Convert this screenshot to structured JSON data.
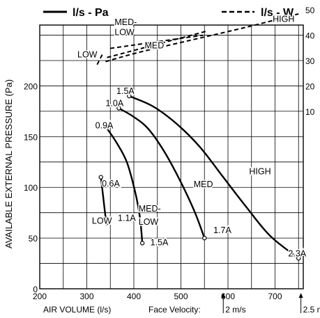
{
  "chart_data": {
    "type": "line",
    "title": "",
    "legend": {
      "solid_label": "l/s - Pa",
      "dashed_label": "l/s - W",
      "placement": "top"
    },
    "xlabel": "AIR VOLUME (l/s)",
    "ylabel": "AVAILABLE EXTERNAL PRESSURE (Pa)",
    "xlim": [
      200,
      760
    ],
    "ylim": [
      0,
      260
    ],
    "x_ticks": [
      "200",
      "300",
      "400",
      "500",
      "600",
      "700"
    ],
    "y_ticks": [
      "0",
      "50",
      "100",
      "150",
      "200"
    ],
    "y2_ticks": [
      "10",
      "20",
      "30",
      "40",
      "50"
    ],
    "grid": true,
    "face_velocity": {
      "label": "Face Velocity:",
      "markers": [
        {
          "label": "2 m/s",
          "x": 590
        },
        {
          "label": "2.5 m/s",
          "x": 755
        }
      ]
    },
    "pressure_series": [
      {
        "name": "LOW",
        "points": [
          [
            330,
            110
          ],
          [
            335,
            90
          ],
          [
            340,
            70
          ],
          [
            342,
            65
          ]
        ],
        "start_label": "0.6A",
        "end_label": "1.1A"
      },
      {
        "name": "MED-LOW",
        "points": [
          [
            340,
            160
          ],
          [
            362,
            145
          ],
          [
            385,
            125
          ],
          [
            403,
            95
          ],
          [
            413,
            70
          ],
          [
            418,
            45
          ]
        ],
        "start_label": "0.9A",
        "end_label": "1.5A"
      },
      {
        "name": "MED",
        "points": [
          [
            368,
            178
          ],
          [
            398,
            170
          ],
          [
            430,
            158
          ],
          [
            465,
            135
          ],
          [
            500,
            105
          ],
          [
            530,
            75
          ],
          [
            550,
            50
          ]
        ],
        "start_label": "1.0A",
        "end_label": "1.7A"
      },
      {
        "name": "HIGH",
        "points": [
          [
            390,
            190
          ],
          [
            440,
            180
          ],
          [
            490,
            163
          ],
          [
            540,
            140
          ],
          [
            590,
            110
          ],
          [
            640,
            80
          ],
          [
            690,
            52
          ],
          [
            750,
            30
          ]
        ],
        "start_label": "1.5A",
        "end_label": "2.3A"
      }
    ],
    "power_series": [
      {
        "name": "LOW",
        "points": [
          [
            322,
            221
          ],
          [
            333,
            231
          ]
        ]
      },
      {
        "name": "MED-LOW",
        "points": [
          [
            350,
            237
          ],
          [
            547,
            250
          ]
        ]
      },
      {
        "name": "MED",
        "points": [
          [
            343,
            228
          ],
          [
            555,
            254
          ]
        ]
      },
      {
        "name": "HIGH",
        "points": [
          [
            340,
            224
          ],
          [
            410,
            233
          ],
          [
            520,
            245
          ],
          [
            640,
            258
          ],
          [
            750,
            271
          ]
        ]
      }
    ],
    "annotations": [
      {
        "text": "LOW",
        "x": 280,
        "y": 228
      },
      {
        "text": "MED-",
        "x": 359,
        "y": 260
      },
      {
        "text": "LOW",
        "x": 359,
        "y": 250
      },
      {
        "text": "MED",
        "x": 423,
        "y": 237
      },
      {
        "text": "HIGH",
        "x": 695,
        "y": 263
      },
      {
        "text": "MED",
        "x": 527,
        "y": 100
      },
      {
        "text": "HIGH",
        "x": 645,
        "y": 113
      },
      {
        "text": "MED-",
        "x": 410,
        "y": 76
      },
      {
        "text": "LOW",
        "x": 410,
        "y": 63
      },
      {
        "text": "LOW",
        "x": 311,
        "y": 64
      },
      {
        "text": "1.1A",
        "x": 366,
        "y": 67
      },
      {
        "text": "0.6A",
        "x": 332,
        "y": 101
      },
      {
        "text": "0.9A",
        "x": 318,
        "y": 158
      },
      {
        "text": "1.0A",
        "x": 340,
        "y": 180
      },
      {
        "text": "1.5A",
        "x": 363,
        "y": 192
      },
      {
        "text": "1.5A",
        "x": 435,
        "y": 43
      },
      {
        "text": "1.7A",
        "x": 569,
        "y": 55
      },
      {
        "text": "2.3A",
        "x": 728,
        "y": 32
      }
    ]
  }
}
